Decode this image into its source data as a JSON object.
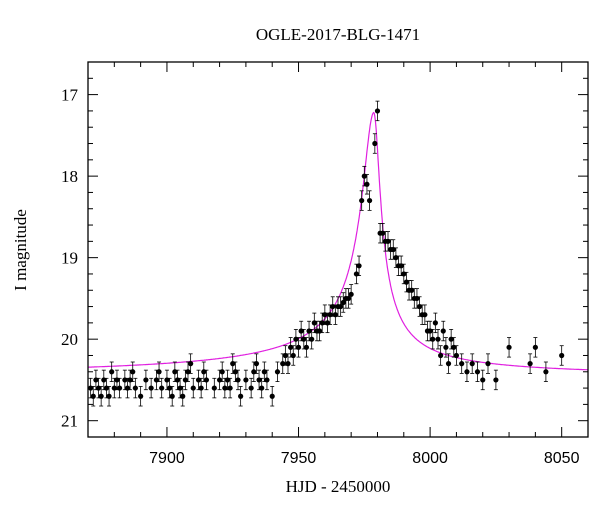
{
  "chart_data": {
    "type": "scatter",
    "title": "OGLE-2017-BLG-1471",
    "xlabel": "HJD - 2450000",
    "ylabel": "I magnitude",
    "xlim": [
      7870,
      8060
    ],
    "ylim": [
      21.2,
      16.6
    ],
    "y_inverted": true,
    "xticks": [
      7900,
      7950,
      8000,
      8050
    ],
    "yticks": [
      17,
      18,
      19,
      20,
      21
    ],
    "grid": false,
    "legend": "none",
    "colors": {
      "data": "#000000",
      "model": "#e020e0",
      "axes": "#000000"
    },
    "model": {
      "name": "",
      "baseline": 20.47,
      "peak_x": 7978.6,
      "peak_y": 17.22,
      "rise_scale_days": 5.0,
      "decay_scale_days": 2.8
    },
    "series": [
      {
        "name": "",
        "x": [
          7871,
          7872,
          7873,
          7874,
          7875,
          7876,
          7877,
          7878,
          7879,
          7880,
          7881,
          7882,
          7884,
          7885,
          7886,
          7887,
          7888,
          7890,
          7892,
          7894,
          7896,
          7897,
          7898,
          7900,
          7901,
          7902,
          7903,
          7904,
          7905,
          7906,
          7907,
          7908,
          7909,
          7910,
          7912,
          7913,
          7914,
          7915,
          7918,
          7920,
          7921,
          7922,
          7923,
          7924,
          7925,
          7926,
          7927,
          7928,
          7930,
          7932,
          7933,
          7934,
          7935,
          7936,
          7937,
          7938,
          7940,
          7942,
          7944,
          7945,
          7946,
          7947,
          7948,
          7949,
          7950,
          7951,
          7952,
          7953,
          7954,
          7955,
          7956,
          7957,
          7958,
          7959,
          7960,
          7961,
          7962,
          7963,
          7964,
          7965,
          7966,
          7967,
          7968,
          7969,
          7970,
          7972,
          7973,
          7974,
          7975,
          7976,
          7977,
          7979,
          7980,
          7981,
          7982,
          7983,
          7984,
          7985,
          7986,
          7987,
          7988,
          7989,
          7990,
          7991,
          7992,
          7993,
          7994,
          7995,
          7996,
          7997,
          7998,
          7999,
          8000,
          8001,
          8002,
          8003,
          8004,
          8005,
          8006,
          8007,
          8008,
          8009,
          8010,
          8012,
          8014,
          8016,
          8018,
          8020,
          8022,
          8025,
          8030,
          8038,
          8040,
          8044,
          8050
        ],
        "y": [
          20.6,
          20.7,
          20.5,
          20.6,
          20.7,
          20.5,
          20.6,
          20.7,
          20.4,
          20.6,
          20.5,
          20.6,
          20.5,
          20.6,
          20.5,
          20.4,
          20.6,
          20.7,
          20.5,
          20.6,
          20.5,
          20.4,
          20.6,
          20.5,
          20.6,
          20.7,
          20.4,
          20.5,
          20.6,
          20.7,
          20.5,
          20.4,
          20.3,
          20.6,
          20.5,
          20.6,
          20.4,
          20.5,
          20.6,
          20.5,
          20.4,
          20.6,
          20.5,
          20.6,
          20.3,
          20.4,
          20.5,
          20.7,
          20.5,
          20.6,
          20.4,
          20.3,
          20.5,
          20.6,
          20.4,
          20.5,
          20.7,
          20.4,
          20.3,
          20.2,
          20.3,
          20.1,
          20.2,
          20.0,
          20.1,
          19.9,
          20.0,
          20.1,
          19.9,
          20.0,
          19.8,
          19.9,
          19.9,
          19.8,
          19.7,
          19.8,
          19.7,
          19.6,
          19.7,
          19.6,
          19.6,
          19.55,
          19.5,
          19.5,
          19.45,
          19.2,
          19.1,
          18.3,
          18.0,
          18.1,
          18.3,
          17.6,
          17.2,
          18.7,
          18.7,
          18.8,
          18.8,
          18.9,
          18.9,
          19.0,
          19.1,
          19.1,
          19.2,
          19.3,
          19.4,
          19.4,
          19.5,
          19.5,
          19.6,
          19.7,
          19.7,
          19.9,
          19.9,
          20.0,
          19.8,
          20.0,
          20.2,
          19.9,
          20.1,
          20.3,
          20.0,
          20.1,
          20.2,
          20.3,
          20.4,
          20.3,
          20.4,
          20.5,
          20.3,
          20.5,
          20.1,
          20.3,
          20.1,
          20.4,
          20.2
        ],
        "error": 0.12
      }
    ]
  }
}
